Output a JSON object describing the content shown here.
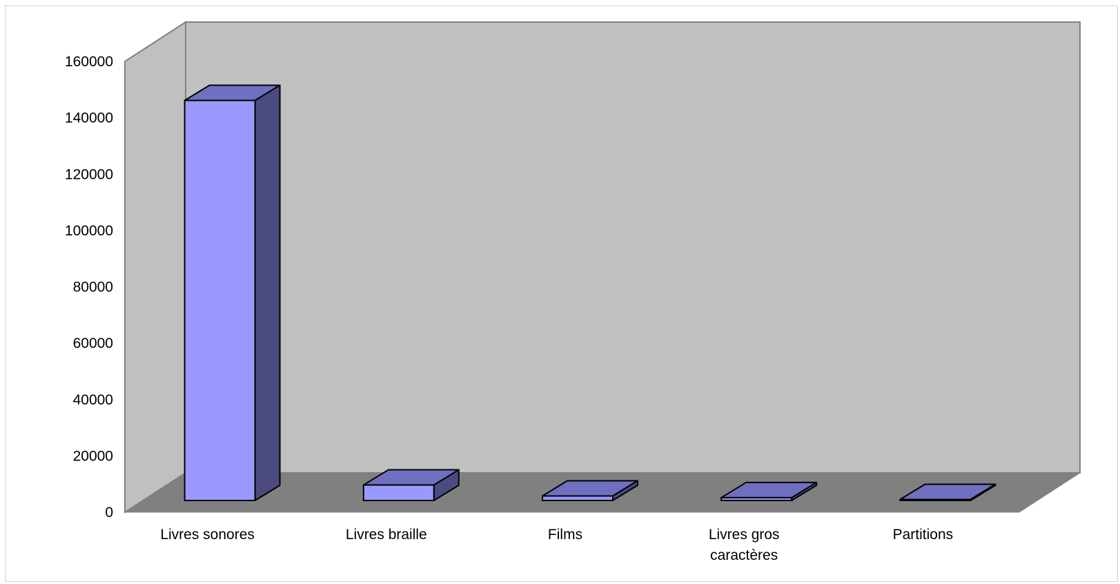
{
  "chart_data": {
    "type": "bar",
    "style": "3d-column",
    "categories": [
      "Livres sonores",
      "Livres braille",
      "Films",
      "Livres gros caractères",
      "Partitions"
    ],
    "category_lines": [
      [
        "Livres sonores"
      ],
      [
        "Livres braille"
      ],
      [
        "Films"
      ],
      [
        "Livres gros",
        "caractères"
      ],
      [
        "Partitions"
      ]
    ],
    "values": [
      142000,
      5500,
      1600,
      1000,
      300
    ],
    "ylim": [
      0,
      160000
    ],
    "yticks": [
      "0",
      "20000",
      "40000",
      "60000",
      "80000",
      "100000",
      "120000",
      "140000",
      "160000"
    ],
    "title": "",
    "xlabel": "",
    "ylabel": "",
    "grid": false,
    "legend": "none",
    "colors": {
      "bar_front": "#9999ff",
      "bar_top": "#7070c0",
      "bar_side": "#4b4b7f",
      "back_wall": "#c0c0c0",
      "side_wall": "#c0c0c0",
      "floor": "#808080",
      "wall_edge": "#808080"
    }
  }
}
